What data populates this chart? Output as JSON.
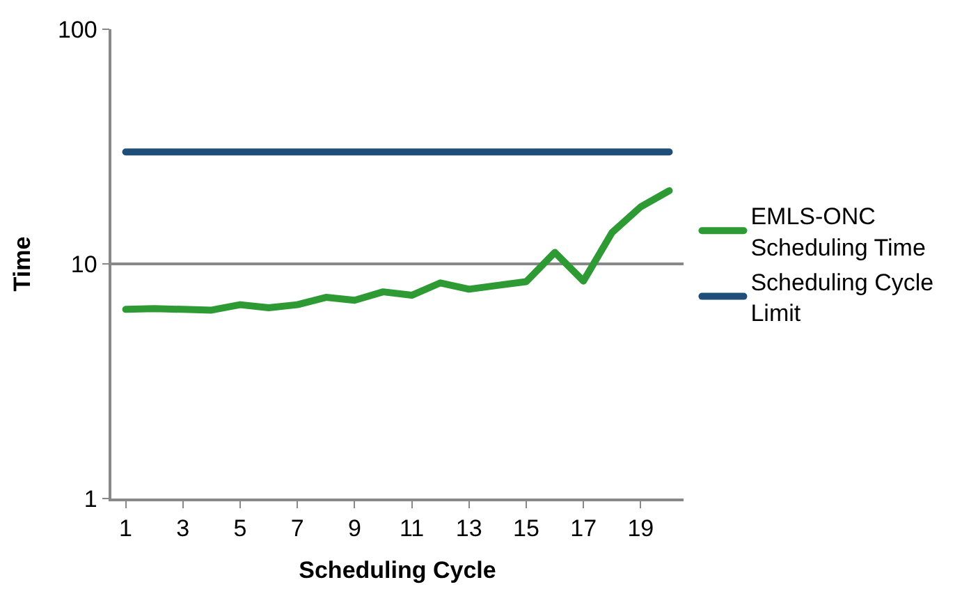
{
  "chart_data": {
    "type": "line",
    "xlabel": "Scheduling Cycle",
    "ylabel": "Time",
    "x": [
      1,
      2,
      3,
      4,
      5,
      6,
      7,
      8,
      9,
      10,
      11,
      12,
      13,
      14,
      15,
      16,
      17,
      18,
      19,
      20
    ],
    "series": [
      {
        "name": "EMLS-ONC Scheduling Time",
        "color": "#2e9a33",
        "values": [
          6.4,
          6.45,
          6.4,
          6.35,
          6.7,
          6.5,
          6.7,
          7.2,
          7.0,
          7.6,
          7.35,
          8.3,
          7.8,
          8.1,
          8.4,
          11.2,
          8.45,
          13.6,
          17.5,
          20.5
        ]
      },
      {
        "name": "Scheduling Cycle Limit",
        "color": "#1f4e79",
        "values": [
          30,
          30,
          30,
          30,
          30,
          30,
          30,
          30,
          30,
          30,
          30,
          30,
          30,
          30,
          30,
          30,
          30,
          30,
          30,
          30
        ]
      }
    ],
    "log": true,
    "ylim": [
      1,
      100
    ],
    "yticks": [
      1,
      10,
      100
    ],
    "xlim": [
      0.5,
      20.5
    ],
    "xticks": [
      1,
      3,
      5,
      7,
      9,
      11,
      13,
      15,
      17,
      19
    ],
    "grid": "y",
    "legend": "right",
    "marker": "none",
    "line_style": "solid"
  }
}
